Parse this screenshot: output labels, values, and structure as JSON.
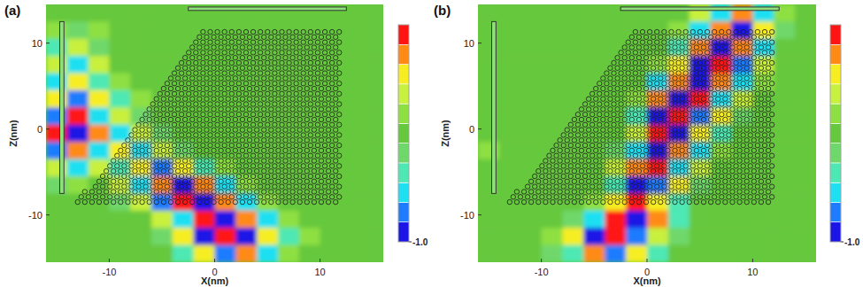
{
  "chart_data": [
    {
      "type": "heatmap",
      "title": "(a)",
      "x_label": "X(nm)",
      "y_label": "Z(nm)",
      "xlim": [
        -16,
        16
      ],
      "ylim": [
        -15.5,
        14.5
      ],
      "xticks": [
        -10,
        0,
        10
      ],
      "yticks": [
        -10,
        0,
        10
      ],
      "x": [
        -15,
        -13,
        -11,
        -9,
        -7,
        -5,
        -3,
        -1,
        1,
        3,
        5,
        7,
        9,
        11,
        13,
        15
      ],
      "y": [
        13.5,
        11.5,
        9.5,
        7.5,
        5.5,
        3.5,
        1.5,
        -0.5,
        -2.5,
        -4.5,
        -6.5,
        -8.5,
        -10.5,
        -12.5,
        -14.5
      ],
      "cells": [
        [
          0,
          0,
          0,
          0,
          0,
          0,
          0,
          0,
          0,
          0,
          0,
          0,
          0,
          0,
          0,
          0
        ],
        [
          0.2,
          -0.2,
          0.1,
          0,
          0,
          0,
          0,
          0,
          0,
          0,
          0,
          0,
          0,
          0,
          0,
          0
        ],
        [
          -0.3,
          0.4,
          -0.2,
          0,
          0,
          0,
          0,
          0,
          0,
          0,
          0,
          0,
          0,
          0,
          0,
          0
        ],
        [
          0.4,
          -0.5,
          0.3,
          0,
          0,
          0,
          0,
          0,
          0,
          0,
          0,
          0,
          0,
          0,
          0,
          0
        ],
        [
          -0.5,
          0.6,
          -0.4,
          0.2,
          0,
          0,
          0,
          0,
          0,
          0,
          0,
          0,
          0,
          0,
          0,
          0
        ],
        [
          0.6,
          -0.7,
          0.5,
          -0.3,
          0.1,
          0,
          0,
          0,
          0,
          0,
          0,
          0,
          0,
          0,
          0,
          0
        ],
        [
          -0.8,
          0.9,
          -0.6,
          0.4,
          -0.2,
          0,
          0,
          0,
          0,
          0,
          0,
          0,
          0,
          0,
          0,
          0
        ],
        [
          0.9,
          -1.0,
          0.7,
          -0.5,
          0.4,
          -0.2,
          0,
          0,
          0,
          0,
          0,
          0,
          0,
          0,
          0,
          0
        ],
        [
          -0.7,
          0.8,
          -0.5,
          0.6,
          -0.5,
          0.4,
          -0.2,
          0,
          0,
          0,
          0,
          0,
          0,
          0,
          0,
          0
        ],
        [
          0.4,
          -0.5,
          0.3,
          -0.4,
          0.6,
          -0.7,
          0.5,
          -0.3,
          0.1,
          0,
          0,
          0,
          0,
          0,
          0,
          0
        ],
        [
          -0.2,
          0.2,
          0,
          0.3,
          -0.5,
          0.8,
          -0.9,
          0.8,
          -0.5,
          0.2,
          0,
          0,
          0,
          0,
          0,
          0
        ],
        [
          0,
          0,
          0,
          -0.2,
          0.4,
          -0.7,
          0.9,
          -1.0,
          0.8,
          -0.5,
          0.2,
          0,
          0,
          0,
          0,
          0
        ],
        [
          0,
          0,
          0,
          0,
          0,
          0.3,
          -0.6,
          0.9,
          -1.0,
          0.8,
          -0.5,
          0.2,
          0,
          0,
          0,
          0
        ],
        [
          0,
          0,
          0,
          0,
          0,
          -0.2,
          0.5,
          -0.9,
          1.0,
          -0.9,
          0.6,
          -0.3,
          0.1,
          0,
          0,
          0
        ],
        [
          0,
          0,
          0,
          0,
          0,
          0,
          -0.3,
          0.6,
          -0.8,
          0.7,
          -0.5,
          0.2,
          0,
          0,
          0,
          0
        ]
      ],
      "colorbar_range": [
        -1,
        1
      ],
      "colorbar_ticks": [
        {
          "value": -1,
          "label": "-1.0"
        }
      ],
      "colors": [
        "#1a14e6",
        "#1f7cff",
        "#1ee0f2",
        "#4ee8b4",
        "#6fd86a",
        "#66c83c",
        "#8ee042",
        "#c8f03e",
        "#f6ee22",
        "#ff8a14",
        "#ff1414"
      ]
    },
    {
      "type": "heatmap",
      "title": "(b)",
      "x_label": "X(nm)",
      "y_label": "Z(nm)",
      "xlim": [
        -16,
        16
      ],
      "ylim": [
        -15.5,
        14.5
      ],
      "xticks": [
        -10,
        0,
        10
      ],
      "yticks": [
        -10,
        0,
        10
      ],
      "x": [
        -15,
        -13,
        -11,
        -9,
        -7,
        -5,
        -3,
        -1,
        1,
        3,
        5,
        7,
        9,
        11,
        13,
        15
      ],
      "y": [
        13.5,
        11.5,
        9.5,
        7.5,
        5.5,
        3.5,
        1.5,
        -0.5,
        -2.5,
        -4.5,
        -6.5,
        -8.5,
        -10.5,
        -12.5,
        -14.5
      ],
      "cells": [
        [
          0,
          0,
          0,
          0,
          0,
          0,
          0,
          0,
          0,
          0,
          0.3,
          -0.6,
          0.7,
          -0.5,
          0.2,
          0
        ],
        [
          0,
          0,
          0,
          0,
          0,
          0,
          0,
          0,
          0,
          0.2,
          -0.5,
          0.8,
          -0.9,
          0.6,
          -0.1,
          0
        ],
        [
          0,
          0,
          0,
          0,
          0,
          0,
          0,
          0,
          0,
          -0.4,
          0.7,
          -0.9,
          0.8,
          -0.5,
          0,
          0
        ],
        [
          0,
          0,
          0,
          0,
          0,
          0,
          0,
          0,
          0.2,
          0.6,
          -0.9,
          1.0,
          -0.7,
          0.4,
          0,
          0
        ],
        [
          0,
          0,
          0,
          0,
          0,
          0,
          0,
          0,
          -0.5,
          0.8,
          -1.0,
          0.8,
          -0.5,
          0.2,
          0,
          0
        ],
        [
          0,
          0,
          0,
          0,
          0,
          0,
          0,
          0.1,
          0.7,
          -0.9,
          0.9,
          -0.6,
          0.3,
          0,
          0,
          0
        ],
        [
          0,
          0,
          0,
          0,
          0,
          0,
          0,
          -0.3,
          -0.9,
          1.0,
          -0.8,
          0.5,
          -0.2,
          0,
          0,
          0
        ],
        [
          0,
          0,
          0,
          0,
          0,
          0,
          0,
          0.4,
          1.0,
          -0.9,
          0.6,
          -0.3,
          0,
          0,
          0,
          0
        ],
        [
          0.1,
          0,
          0,
          0,
          0,
          0,
          -0.2,
          -0.6,
          -0.9,
          0.8,
          -0.5,
          0.2,
          0,
          0,
          0,
          0
        ],
        [
          0,
          0,
          0,
          0,
          0,
          0,
          0.3,
          0.8,
          0.9,
          -0.6,
          0.3,
          0,
          0,
          0,
          0,
          0
        ],
        [
          0,
          0,
          0,
          0,
          0,
          0,
          -0.4,
          -0.9,
          -0.8,
          0.5,
          -0.2,
          0,
          0,
          0,
          0,
          0
        ],
        [
          0,
          0,
          0,
          0,
          0,
          0.2,
          0.6,
          0.9,
          0.6,
          -0.3,
          0,
          0,
          0,
          0,
          0,
          0
        ],
        [
          0,
          0,
          0,
          0,
          -0.2,
          -0.6,
          0.9,
          -1.0,
          0.7,
          -0.3,
          0,
          0,
          0,
          0,
          0,
          0
        ],
        [
          0,
          0,
          0,
          0.2,
          0.5,
          -0.9,
          1.0,
          -0.8,
          0.4,
          -0.1,
          0,
          0,
          0,
          0,
          0,
          0
        ],
        [
          0,
          0,
          0,
          -0.1,
          -0.4,
          0.7,
          -0.8,
          0.6,
          -0.3,
          0,
          0,
          0,
          0,
          0,
          0,
          0
        ]
      ],
      "colorbar_range": [
        -1,
        1
      ],
      "colorbar_ticks": [
        {
          "value": -1,
          "label": "-1.0"
        }
      ],
      "colors": [
        "#1a14e6",
        "#1f7cff",
        "#1ee0f2",
        "#4ee8b4",
        "#6fd86a",
        "#66c83c",
        "#8ee042",
        "#c8f03e",
        "#f6ee22",
        "#ff8a14",
        "#ff1414"
      ]
    }
  ]
}
